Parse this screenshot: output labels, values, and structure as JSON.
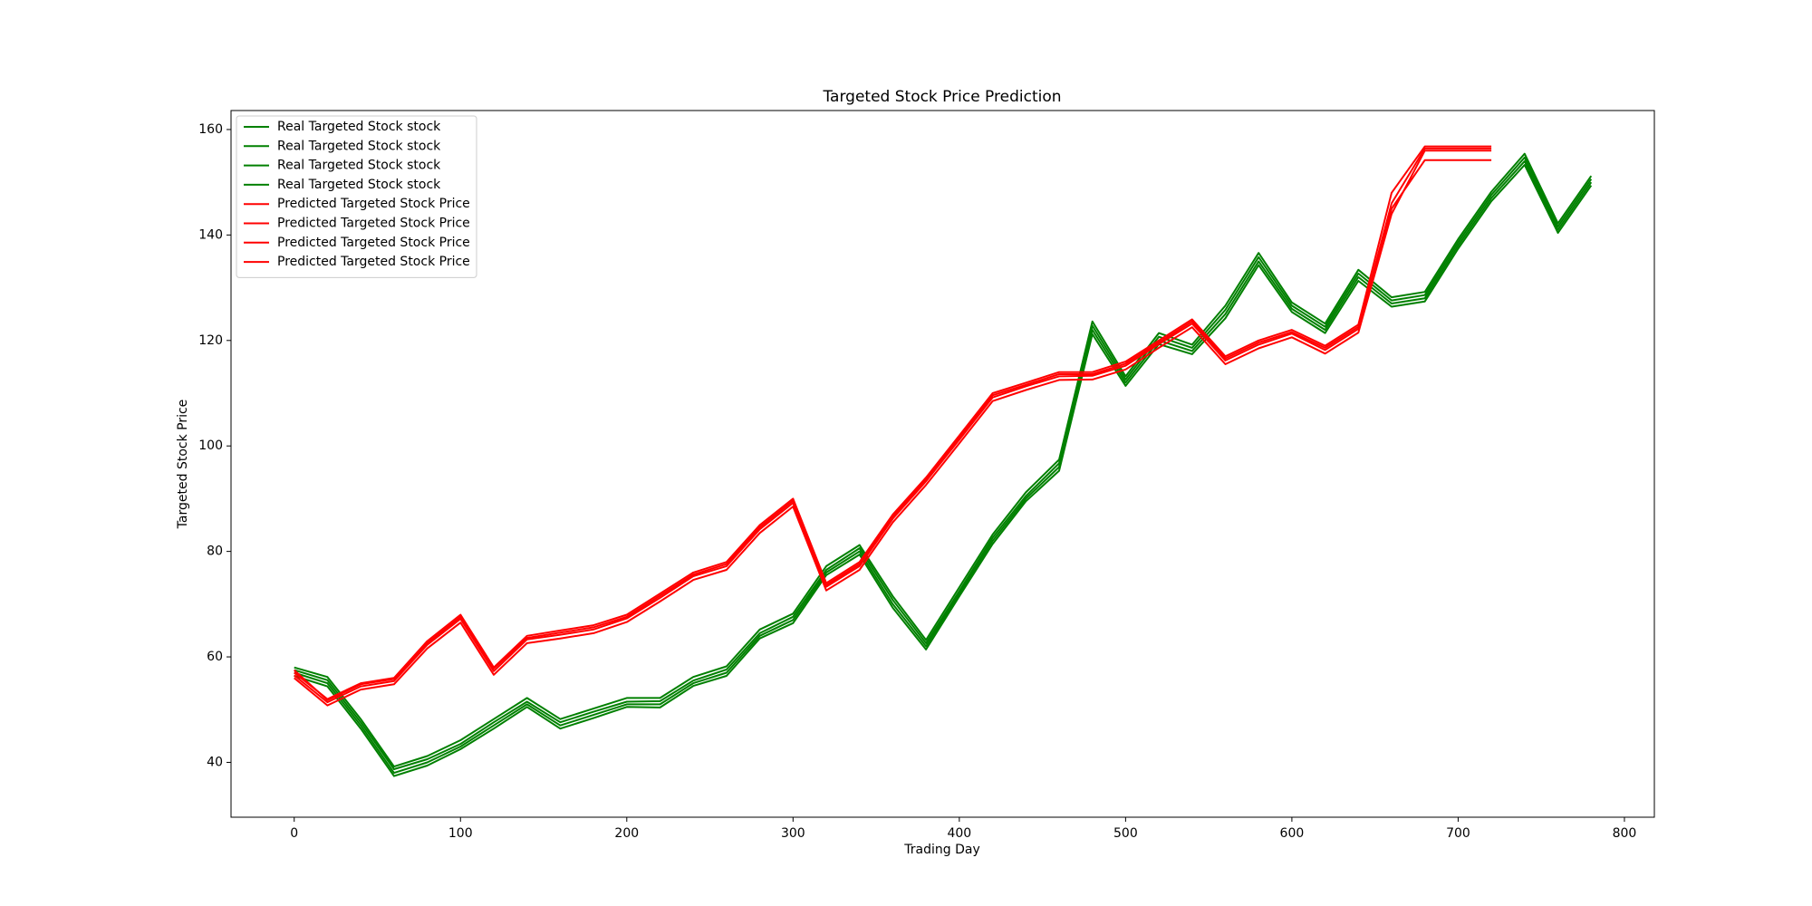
{
  "chart_data": {
    "type": "line",
    "title": "Targeted Stock Price Prediction",
    "x_label": "Trading Day",
    "y_label": "Targeted Stock Price",
    "x": [
      0,
      20,
      40,
      60,
      80,
      100,
      120,
      140,
      160,
      180,
      200,
      220,
      240,
      260,
      280,
      300,
      320,
      340,
      360,
      380,
      400,
      420,
      440,
      460,
      480,
      500,
      520,
      540,
      560,
      580,
      600,
      620,
      640,
      660,
      680,
      700,
      720,
      740,
      760,
      780
    ],
    "series": [
      {
        "name": "Real Targeted Stock stock",
        "color": "#008000",
        "values": [
          57,
          55,
          47,
          38,
          40,
          43,
          47,
          51,
          47,
          49,
          51,
          51,
          55,
          57,
          64,
          67,
          76,
          80,
          70,
          62,
          72,
          82,
          90,
          96,
          122,
          112,
          120,
          118,
          125,
          135,
          126,
          122,
          132,
          127,
          128,
          138,
          147,
          154,
          141,
          150
        ]
      },
      {
        "name": "Real Targeted Stock stock",
        "color": "#008000",
        "values": [
          57.5,
          55.6,
          47.6,
          38.7,
          40.6,
          43.5,
          47.6,
          51.5,
          47.6,
          49.6,
          51.5,
          51.6,
          55.5,
          57.6,
          64.5,
          67.6,
          76.5,
          80.6,
          70.8,
          62.6,
          72.5,
          82.6,
          90.5,
          96.7,
          122.8,
          112.6,
          120.7,
          118.6,
          125.8,
          135.8,
          126.6,
          122.6,
          132.7,
          127.6,
          128.6,
          138.6,
          147.6,
          154.7,
          141.6,
          150.6
        ]
      },
      {
        "name": "Real Targeted Stock stock",
        "color": "#008000",
        "values": [
          56.4,
          54.4,
          46.4,
          37.4,
          39.4,
          42.5,
          46.4,
          50.5,
          46.4,
          48.4,
          50.5,
          50.4,
          54.5,
          56.4,
          63.5,
          66.4,
          75.5,
          79.4,
          69.3,
          61.4,
          71.5,
          81.4,
          89.5,
          95.3,
          121.2,
          111.4,
          119.3,
          117.4,
          124.2,
          134.3,
          125.4,
          121.4,
          131.3,
          126.4,
          127.4,
          137.4,
          146.4,
          153.3,
          140.4,
          149.4
        ]
      },
      {
        "name": "Real Targeted Stock stock",
        "color": "#008000",
        "values": [
          58,
          56.2,
          48.2,
          39.2,
          41.2,
          44.2,
          48.2,
          52.2,
          48.2,
          50.2,
          52.2,
          52.2,
          56.2,
          58.2,
          65.2,
          68.2,
          77.2,
          81.2,
          71.5,
          63.2,
          73.2,
          83.2,
          91.2,
          97.4,
          123.6,
          113.2,
          121.4,
          119.2,
          126.6,
          136.6,
          127.2,
          123.2,
          133.4,
          128.2,
          129.2,
          139.2,
          148.2,
          155.4,
          142.2,
          151.2
        ]
      },
      {
        "name": "Predicted Targeted Stock Price",
        "color": "#ff0000",
        "values": [
          57,
          52,
          55,
          56,
          63,
          68,
          58,
          64,
          65,
          66,
          68,
          72,
          76,
          78,
          85,
          90,
          74,
          78,
          87,
          94,
          102,
          110,
          112,
          114,
          114,
          116,
          120,
          124,
          117,
          120,
          122,
          119,
          123,
          148,
          156.8,
          156.8,
          156.8,
          null,
          null,
          null
        ]
      },
      {
        "name": "Predicted Targeted Stock Price",
        "color": "#ff0000",
        "values": [
          56.5,
          51.4,
          54.4,
          55.4,
          62.3,
          67.2,
          57.3,
          63.3,
          64.2,
          65.2,
          67.3,
          71.2,
          75.3,
          77.2,
          84.2,
          89.2,
          73.3,
          77.2,
          86.2,
          93.3,
          101.2,
          109.2,
          111.3,
          113.2,
          113.3,
          115.2,
          119.3,
          123.2,
          116.2,
          119.2,
          121.3,
          118.2,
          122.2,
          146,
          156.4,
          156.4,
          156.4,
          null,
          null,
          null
        ]
      },
      {
        "name": "Predicted Targeted Stock Price",
        "color": "#ff0000",
        "values": [
          56,
          50.8,
          53.8,
          54.8,
          61.6,
          66.5,
          56.6,
          62.6,
          63.5,
          64.5,
          66.6,
          70.5,
          74.6,
          76.5,
          83.5,
          88.5,
          72.6,
          76.5,
          85.5,
          92.6,
          100.5,
          108.5,
          110.6,
          112.5,
          112.6,
          114.5,
          118.6,
          122.5,
          115.5,
          118.5,
          120.6,
          117.5,
          121.5,
          144,
          156,
          156,
          156,
          null,
          null,
          null
        ]
      },
      {
        "name": "Predicted Targeted Stock Price",
        "color": "#ff0000",
        "values": [
          57.5,
          51.8,
          54.8,
          55.8,
          62.6,
          67.6,
          57.8,
          63.6,
          64.6,
          65.6,
          67.6,
          71.6,
          75.6,
          77.6,
          84.6,
          89.6,
          73.6,
          77.6,
          86.6,
          93.6,
          101.6,
          109.6,
          111.6,
          113.6,
          113.6,
          115.6,
          119.6,
          123.6,
          116.6,
          119.6,
          121.6,
          118.6,
          122.6,
          145,
          154.2,
          154.2,
          154.2,
          null,
          null,
          null
        ]
      }
    ],
    "xlim": [
      -38,
      818
    ],
    "xticks": [
      0,
      100,
      200,
      300,
      400,
      500,
      600,
      700,
      800
    ],
    "ylim": [
      29.6,
      163.6
    ],
    "yticks": [
      40,
      60,
      80,
      100,
      120,
      140,
      160
    ],
    "legend": "upper left"
  }
}
